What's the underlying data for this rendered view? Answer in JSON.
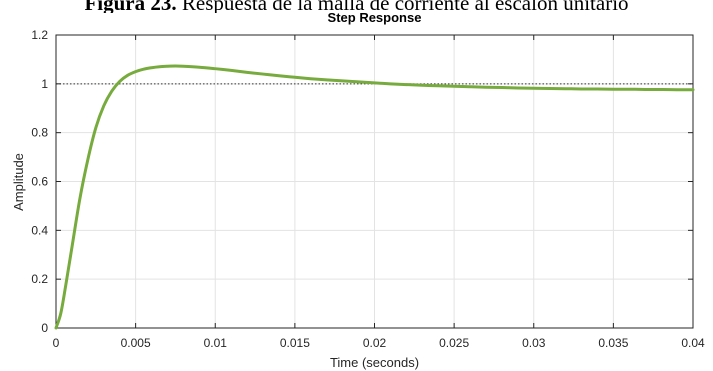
{
  "figure_caption": {
    "label": "Figura 23.",
    "text": "Respuesta de la malla de corriente al escalón unitario"
  },
  "colors": {
    "response_line": "#77ab3d",
    "grid": "#e3e3e3",
    "axis": "#262626",
    "reference_line": "#333333"
  },
  "chart_data": {
    "type": "line",
    "title": "Step Response",
    "xlabel": "Time (seconds)",
    "ylabel": "Amplitude",
    "xlim": [
      0,
      0.04
    ],
    "ylim": [
      0,
      1.2
    ],
    "grid": true,
    "xticks": [
      0,
      0.005,
      0.01,
      0.015,
      0.02,
      0.025,
      0.03,
      0.035,
      0.04
    ],
    "xtick_labels": [
      "0",
      "0.005",
      "0.01",
      "0.015",
      "0.02",
      "0.025",
      "0.03",
      "0.035",
      "0.04"
    ],
    "yticks": [
      0,
      0.2,
      0.4,
      0.6,
      0.8,
      1,
      1.2
    ],
    "ytick_labels": [
      "0",
      "0.2",
      "0.4",
      "0.6",
      "0.8",
      "1",
      "1.2"
    ],
    "reference_line": {
      "y": 1,
      "style": "dotted"
    },
    "series": [
      {
        "x": [
          0,
          0.0003,
          0.0006,
          0.001,
          0.0015,
          0.002,
          0.0025,
          0.003,
          0.0035,
          0.004,
          0.0045,
          0.005,
          0.0055,
          0.006,
          0.0065,
          0.007,
          0.0075,
          0.008,
          0.009,
          0.01,
          0.011,
          0.012,
          0.013,
          0.014,
          0.015,
          0.016,
          0.017,
          0.018,
          0.019,
          0.02,
          0.021,
          0.022,
          0.023,
          0.024,
          0.025,
          0.026,
          0.027,
          0.028,
          0.029,
          0.03,
          0.031,
          0.032,
          0.033,
          0.034,
          0.035,
          0.036,
          0.037,
          0.038,
          0.039,
          0.04
        ],
        "y": [
          0,
          0.06,
          0.17,
          0.33,
          0.53,
          0.69,
          0.82,
          0.91,
          0.97,
          1.01,
          1.035,
          1.05,
          1.06,
          1.066,
          1.07,
          1.072,
          1.073,
          1.072,
          1.068,
          1.062,
          1.055,
          1.047,
          1.04,
          1.033,
          1.027,
          1.021,
          1.016,
          1.012,
          1.008,
          1.004,
          1.0,
          0.997,
          0.994,
          0.992,
          0.99,
          0.988,
          0.986,
          0.985,
          0.983,
          0.982,
          0.981,
          0.98,
          0.979,
          0.979,
          0.978,
          0.978,
          0.977,
          0.977,
          0.976,
          0.976
        ]
      }
    ]
  }
}
